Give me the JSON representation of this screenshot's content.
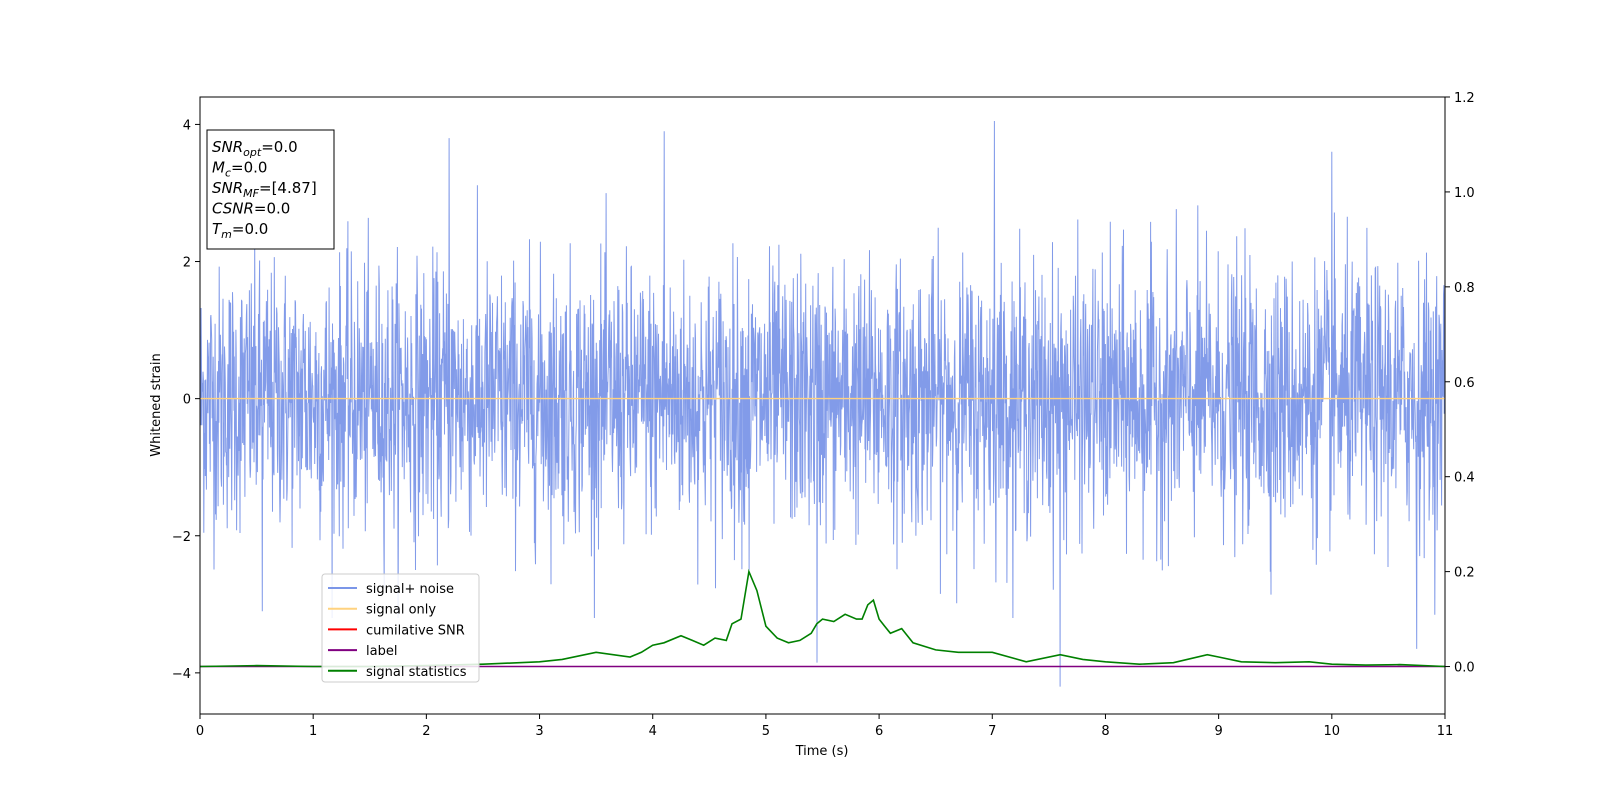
{
  "chart_data": {
    "type": "line",
    "xlabel": "Time (s)",
    "ylabel": "Whitened strain",
    "xlim": [
      0,
      11
    ],
    "ylim": [
      -4.6,
      4.4
    ],
    "ylim_right": [
      -0.1,
      1.2
    ],
    "x_ticks": [
      "0",
      "1",
      "2",
      "3",
      "4",
      "5",
      "6",
      "7",
      "8",
      "9",
      "10",
      "11"
    ],
    "y_ticks": [
      "−4",
      "−2",
      "0",
      "2",
      "4"
    ],
    "y_ticks_right": [
      "0.0",
      "0.2",
      "0.4",
      "0.6",
      "0.8",
      "1.0",
      "1.2"
    ],
    "grid": false,
    "legend_position": "lower-left",
    "legend": [
      {
        "name": "signal+ noise",
        "color": "#7b96e8"
      },
      {
        "name": "signal only",
        "color": "#ffd27f"
      },
      {
        "name": "cumilative SNR",
        "color": "#ff0000"
      },
      {
        "name": "label",
        "color": "#800080"
      },
      {
        "name": "signal statistics",
        "color": "#008000"
      }
    ],
    "series": [
      {
        "name": "signal+ noise",
        "axis": "left",
        "description_range": [
          -4.2,
          4.05
        ],
        "color": "#7b96e8",
        "spikes": [
          {
            "x": 2.2,
            "y": 3.8
          },
          {
            "x": 4.1,
            "y": 3.9
          },
          {
            "x": 7.02,
            "y": 4.05
          },
          {
            "x": 10.0,
            "y": 3.6
          },
          {
            "x": 0.55,
            "y": -3.1
          },
          {
            "x": 4.85,
            "y": -2.5
          },
          {
            "x": 5.45,
            "y": -3.85
          },
          {
            "x": 7.6,
            "y": -4.2
          },
          {
            "x": 10.75,
            "y": -3.65
          }
        ]
      },
      {
        "name": "signal only",
        "axis": "left",
        "color": "#ffd27f",
        "x": [
          0,
          11
        ],
        "values": [
          0,
          0
        ]
      },
      {
        "name": "label",
        "axis": "right",
        "color": "#800080",
        "x": [
          0,
          11
        ],
        "values": [
          0,
          0
        ]
      },
      {
        "name": "signal statistics",
        "axis": "right",
        "color": "#008000",
        "x": [
          0,
          0.5,
          1,
          1.5,
          2,
          2.5,
          3,
          3.2,
          3.5,
          3.8,
          3.9,
          4.0,
          4.1,
          4.25,
          4.35,
          4.45,
          4.55,
          4.65,
          4.7,
          4.78,
          4.85,
          4.92,
          5.0,
          5.1,
          5.2,
          5.3,
          5.4,
          5.45,
          5.5,
          5.6,
          5.7,
          5.8,
          5.85,
          5.9,
          5.95,
          6.0,
          6.05,
          6.1,
          6.2,
          6.3,
          6.5,
          6.7,
          6.9,
          7.0,
          7.3,
          7.6,
          7.8,
          8.0,
          8.3,
          8.6,
          8.9,
          9.0,
          9.2,
          9.5,
          9.8,
          10.0,
          10.3,
          10.6,
          11.0
        ],
        "values": [
          0.0,
          0.002,
          0.0,
          0.0,
          0.002,
          0.005,
          0.01,
          0.015,
          0.03,
          0.02,
          0.03,
          0.045,
          0.05,
          0.065,
          0.055,
          0.045,
          0.06,
          0.055,
          0.09,
          0.1,
          0.2,
          0.16,
          0.085,
          0.06,
          0.05,
          0.055,
          0.07,
          0.09,
          0.1,
          0.095,
          0.11,
          0.1,
          0.1,
          0.13,
          0.14,
          0.1,
          0.085,
          0.07,
          0.08,
          0.05,
          0.035,
          0.03,
          0.03,
          0.03,
          0.01,
          0.025,
          0.015,
          0.01,
          0.005,
          0.008,
          0.025,
          0.02,
          0.01,
          0.008,
          0.01,
          0.005,
          0.003,
          0.004,
          0.0
        ]
      }
    ],
    "annotation": {
      "lines": [
        {
          "base": "SNR",
          "sub": "opt",
          "value": "=0.0"
        },
        {
          "base": "M",
          "sub": "c",
          "value": "=0.0"
        },
        {
          "base": "SNR",
          "sub": "MF",
          "value": "=[4.87]"
        },
        {
          "base": "CSNR",
          "sub": "",
          "value": "=0.0"
        },
        {
          "base": "T",
          "sub": "m",
          "value": "=0.0"
        }
      ]
    }
  }
}
